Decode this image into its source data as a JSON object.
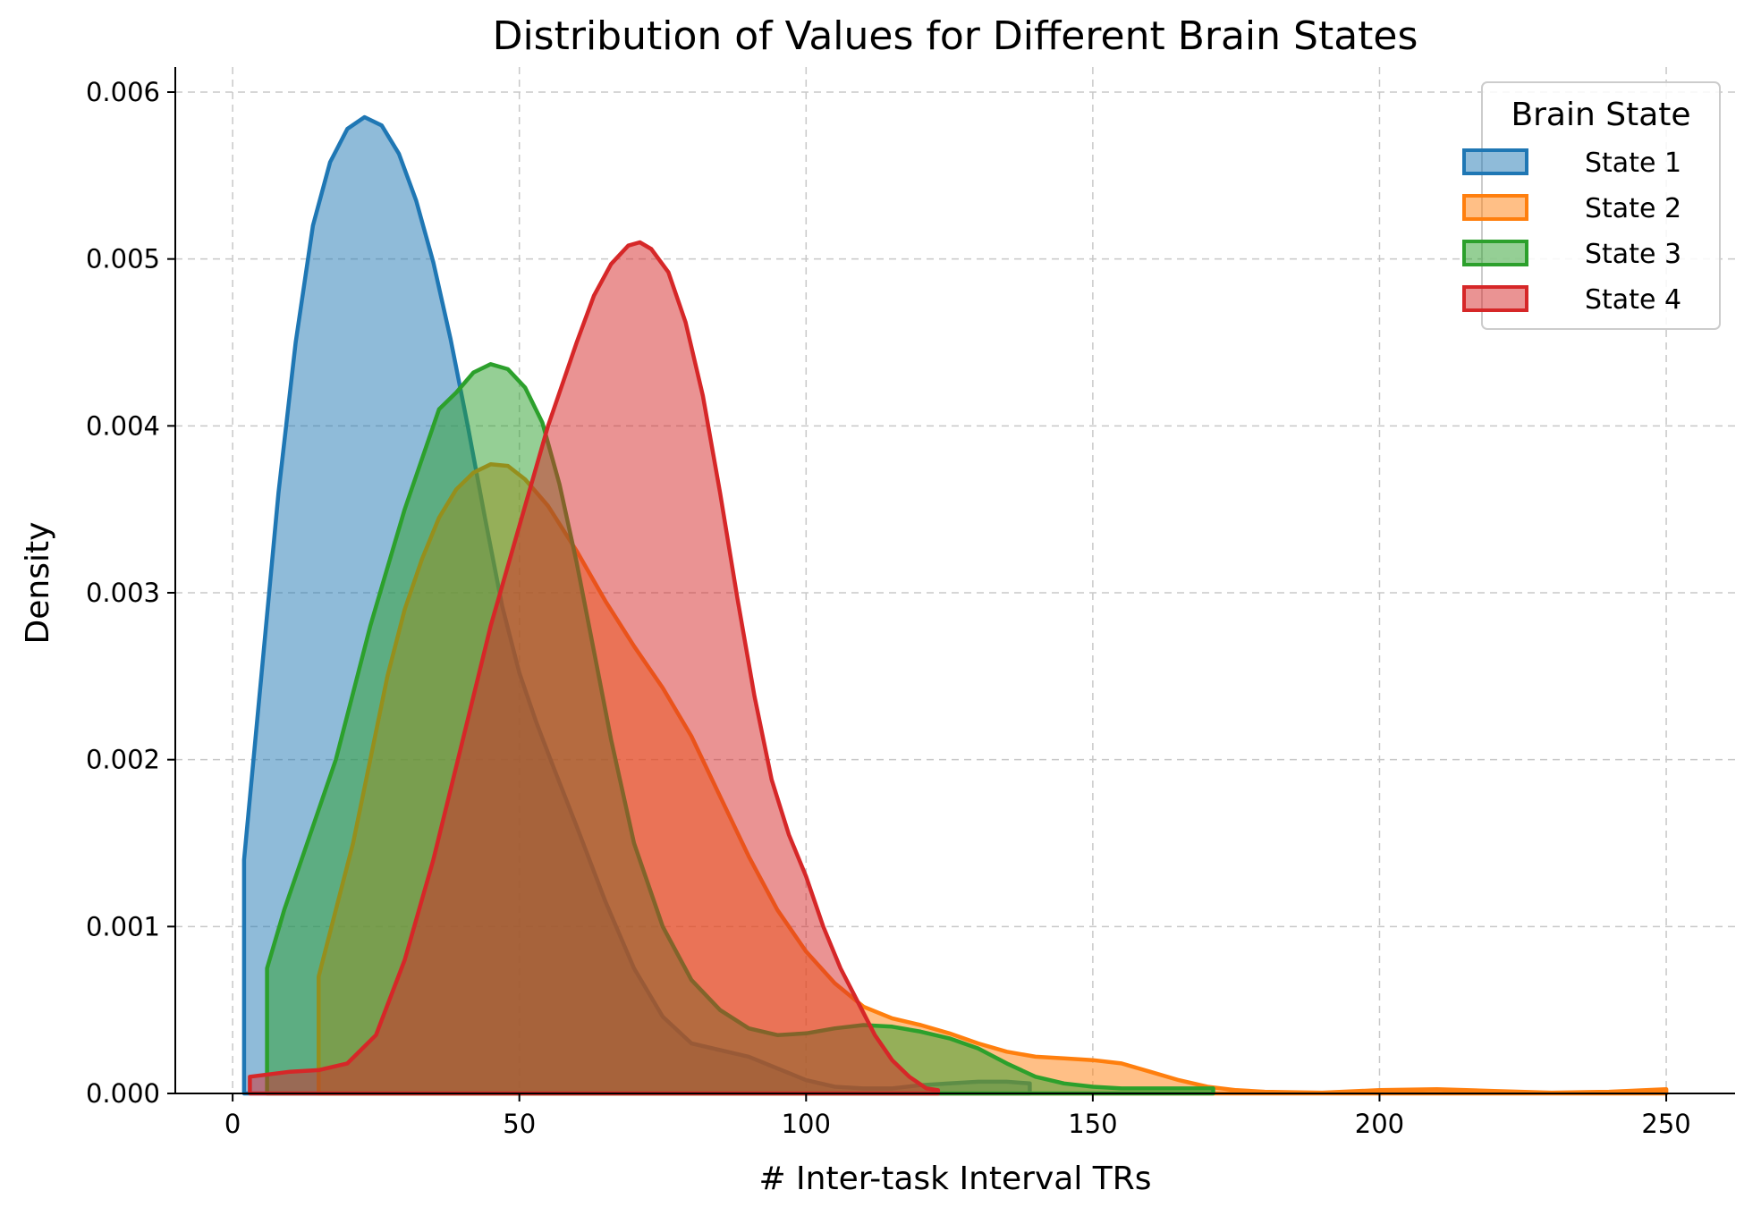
{
  "chart_data": {
    "type": "area",
    "title": "Distribution of Values for Different Brain States",
    "xlabel": "# Inter-task Interval TRs",
    "ylabel": "Density",
    "xlim": [
      -10,
      262
    ],
    "ylim": [
      0,
      0.00615
    ],
    "xticks": [
      0,
      50,
      100,
      150,
      200,
      250
    ],
    "xtick_labels": [
      "0",
      "50",
      "100",
      "150",
      "200",
      "250"
    ],
    "yticks": [
      0,
      0.001,
      0.002,
      0.003,
      0.004,
      0.005,
      0.006
    ],
    "ytick_labels": [
      "0.000",
      "0.001",
      "0.002",
      "0.003",
      "0.004",
      "0.005",
      "0.006"
    ],
    "grid": true,
    "legend": {
      "title": "Brain State",
      "placement": "top-right"
    },
    "series": [
      {
        "name": "State 1",
        "color": "#1f77b4",
        "points": [
          [
            2,
            0.0014
          ],
          [
            5,
            0.0025
          ],
          [
            8,
            0.0036
          ],
          [
            11,
            0.0045
          ],
          [
            14,
            0.0052
          ],
          [
            17,
            0.00558
          ],
          [
            20,
            0.00578
          ],
          [
            23,
            0.00585
          ],
          [
            26,
            0.0058
          ],
          [
            29,
            0.00563
          ],
          [
            32,
            0.00535
          ],
          [
            35,
            0.00498
          ],
          [
            38,
            0.00452
          ],
          [
            41,
            0.004
          ],
          [
            44,
            0.00345
          ],
          [
            47,
            0.00292
          ],
          [
            50,
            0.00252
          ],
          [
            53,
            0.00222
          ],
          [
            56,
            0.00195
          ],
          [
            60,
            0.0016
          ],
          [
            65,
            0.00115
          ],
          [
            70,
            0.00075
          ],
          [
            75,
            0.00046
          ],
          [
            80,
            0.0003
          ],
          [
            85,
            0.00026
          ],
          [
            90,
            0.00022
          ],
          [
            95,
            0.00015
          ],
          [
            100,
            8e-05
          ],
          [
            105,
            4e-05
          ],
          [
            110,
            3e-05
          ],
          [
            115,
            3e-05
          ],
          [
            120,
            5e-05
          ],
          [
            125,
            6e-05
          ],
          [
            130,
            7e-05
          ],
          [
            135,
            7e-05
          ],
          [
            139,
            6e-05
          ]
        ]
      },
      {
        "name": "State 2",
        "color": "#ff7f0e",
        "points": [
          [
            15,
            0.0007
          ],
          [
            18,
            0.0011
          ],
          [
            21,
            0.0015
          ],
          [
            24,
            0.002
          ],
          [
            27,
            0.0025
          ],
          [
            30,
            0.0029
          ],
          [
            33,
            0.0032
          ],
          [
            36,
            0.00345
          ],
          [
            39,
            0.00362
          ],
          [
            42,
            0.00372
          ],
          [
            45,
            0.00377
          ],
          [
            48,
            0.00376
          ],
          [
            51,
            0.00368
          ],
          [
            55,
            0.00352
          ],
          [
            60,
            0.00325
          ],
          [
            65,
            0.00295
          ],
          [
            70,
            0.00268
          ],
          [
            75,
            0.00243
          ],
          [
            80,
            0.00214
          ],
          [
            85,
            0.00178
          ],
          [
            90,
            0.00142
          ],
          [
            95,
            0.0011
          ],
          [
            100,
            0.00085
          ],
          [
            105,
            0.00066
          ],
          [
            110,
            0.00052
          ],
          [
            115,
            0.00045
          ],
          [
            120,
            0.00041
          ],
          [
            125,
            0.00036
          ],
          [
            130,
            0.0003
          ],
          [
            135,
            0.00025
          ],
          [
            140,
            0.00022
          ],
          [
            145,
            0.00021
          ],
          [
            150,
            0.0002
          ],
          [
            155,
            0.00018
          ],
          [
            160,
            0.00013
          ],
          [
            165,
            8e-05
          ],
          [
            170,
            4e-05
          ],
          [
            175,
            2e-05
          ],
          [
            180,
            1e-05
          ],
          [
            190,
            5e-06
          ],
          [
            200,
            2e-05
          ],
          [
            210,
            2.5e-05
          ],
          [
            220,
            1.5e-05
          ],
          [
            230,
            5e-06
          ],
          [
            240,
            1e-05
          ],
          [
            250,
            2.5e-05
          ]
        ]
      },
      {
        "name": "State 3",
        "color": "#2ca02c",
        "points": [
          [
            6,
            0.00075
          ],
          [
            9,
            0.0011
          ],
          [
            12,
            0.0014
          ],
          [
            15,
            0.0017
          ],
          [
            18,
            0.002
          ],
          [
            21,
            0.0024
          ],
          [
            24,
            0.0028
          ],
          [
            27,
            0.00315
          ],
          [
            30,
            0.0035
          ],
          [
            33,
            0.0038
          ],
          [
            36,
            0.0041
          ],
          [
            39,
            0.0042
          ],
          [
            42,
            0.00432
          ],
          [
            45,
            0.00437
          ],
          [
            48,
            0.00434
          ],
          [
            51,
            0.00423
          ],
          [
            54,
            0.00402
          ],
          [
            57,
            0.00365
          ],
          [
            60,
            0.00318
          ],
          [
            63,
            0.00265
          ],
          [
            66,
            0.00212
          ],
          [
            70,
            0.0015
          ],
          [
            75,
            0.001
          ],
          [
            80,
            0.00068
          ],
          [
            85,
            0.0005
          ],
          [
            90,
            0.00039
          ],
          [
            95,
            0.00035
          ],
          [
            100,
            0.00036
          ],
          [
            105,
            0.00039
          ],
          [
            110,
            0.00041
          ],
          [
            115,
            0.0004
          ],
          [
            120,
            0.00037
          ],
          [
            125,
            0.00033
          ],
          [
            130,
            0.00027
          ],
          [
            135,
            0.00018
          ],
          [
            140,
            0.0001
          ],
          [
            145,
            6e-05
          ],
          [
            150,
            4e-05
          ],
          [
            155,
            3e-05
          ],
          [
            160,
            3e-05
          ],
          [
            165,
            3e-05
          ],
          [
            171,
            3e-05
          ]
        ]
      },
      {
        "name": "State 4",
        "color": "#d62728",
        "points": [
          [
            3,
            0.0001
          ],
          [
            10,
            0.00013
          ],
          [
            15,
            0.00014
          ],
          [
            20,
            0.00018
          ],
          [
            25,
            0.00035
          ],
          [
            30,
            0.0008
          ],
          [
            35,
            0.0014
          ],
          [
            40,
            0.0021
          ],
          [
            45,
            0.0028
          ],
          [
            50,
            0.0034
          ],
          [
            55,
            0.004
          ],
          [
            60,
            0.0045
          ],
          [
            63,
            0.00478
          ],
          [
            66,
            0.00497
          ],
          [
            69,
            0.00508
          ],
          [
            71,
            0.0051
          ],
          [
            73,
            0.00506
          ],
          [
            76,
            0.00492
          ],
          [
            79,
            0.00462
          ],
          [
            82,
            0.00418
          ],
          [
            85,
            0.0036
          ],
          [
            88,
            0.00297
          ],
          [
            91,
            0.00238
          ],
          [
            94,
            0.00188
          ],
          [
            97,
            0.00155
          ],
          [
            100,
            0.0013
          ],
          [
            103,
            0.001
          ],
          [
            106,
            0.00075
          ],
          [
            109,
            0.00055
          ],
          [
            112,
            0.00035
          ],
          [
            115,
            0.0002
          ],
          [
            118,
            0.0001
          ],
          [
            121,
            3e-05
          ],
          [
            123,
            2e-05
          ]
        ]
      }
    ]
  }
}
